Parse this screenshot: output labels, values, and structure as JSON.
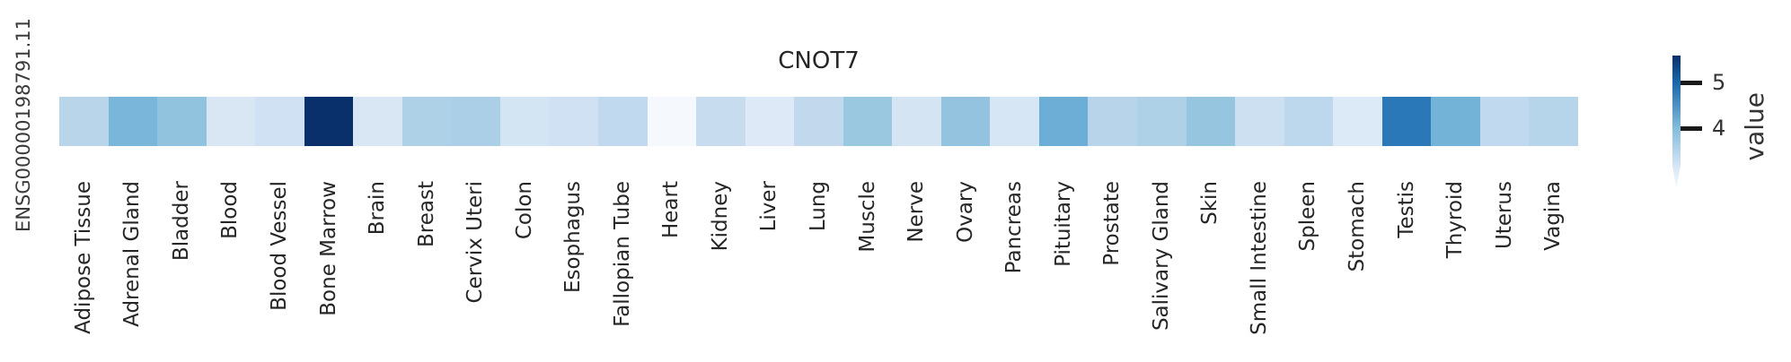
{
  "title": "CNOT7",
  "gene_id": "ENSG00000198791.11",
  "colorbar": {
    "label": "value",
    "ticks": [
      {
        "label": "5"
      },
      {
        "label": "4"
      }
    ]
  },
  "chart_data": {
    "type": "heatmap",
    "title": "CNOT7",
    "row_label": "ENSG00000198791.11",
    "legend_title": "value",
    "colormap": "Blues",
    "color_scale": {
      "min_value": 2.7,
      "max_value": 5.6,
      "tick_values": [
        4,
        5
      ],
      "min_color": "#f7fbff",
      "max_color": "#08306b"
    },
    "categories": [
      "Adipose Tissue",
      "Adrenal Gland",
      "Bladder",
      "Blood",
      "Blood Vessel",
      "Bone Marrow",
      "Brain",
      "Breast",
      "Cervix Uteri",
      "Colon",
      "Esophagus",
      "Fallopian Tube",
      "Heart",
      "Kidney",
      "Liver",
      "Lung",
      "Muscle",
      "Nerve",
      "Ovary",
      "Pancreas",
      "Pituitary",
      "Prostate",
      "Salivary Gland",
      "Skin",
      "Small Intestine",
      "Spleen",
      "Stomach",
      "Testis",
      "Thyroid",
      "Uterus",
      "Vagina"
    ],
    "values": [
      3.5,
      4.0,
      3.9,
      3.1,
      3.3,
      5.6,
      3.1,
      3.6,
      3.7,
      3.2,
      3.3,
      3.5,
      2.8,
      3.4,
      3.1,
      3.4,
      3.8,
      3.2,
      3.9,
      3.2,
      4.1,
      3.6,
      3.6,
      3.9,
      3.3,
      3.5,
      3.1,
      4.8,
      4.1,
      3.5,
      3.6
    ],
    "cell_colors": [
      "#b9d5ea",
      "#7ab6d9",
      "#92c3de",
      "#d9e7f5",
      "#cfe1f2",
      "#09306b",
      "#d9e7f5",
      "#aed1e7",
      "#abcfe6",
      "#d3e4f3",
      "#cfe1f2",
      "#c0d9ee",
      "#f5f9fd",
      "#c8dcef",
      "#dde9f6",
      "#c2d9ed",
      "#9bc8e1",
      "#d4e4f3",
      "#93c3de",
      "#d7e6f4",
      "#6caed5",
      "#b8d4ea",
      "#aed1e7",
      "#96c5df",
      "#cde0f1",
      "#bdd7ec",
      "#dce9f6",
      "#2b78b8",
      "#74b3d8",
      "#c0d9ee",
      "#b6d4ea"
    ]
  }
}
